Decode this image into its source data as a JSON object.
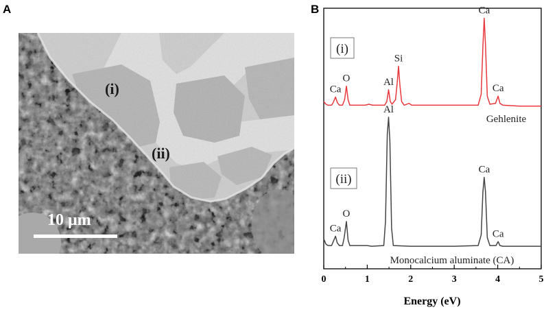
{
  "panels": {
    "a": {
      "letter": "A"
    },
    "b": {
      "letter": "B"
    }
  },
  "micrograph": {
    "region_i_label": "(i)",
    "region_ii_label": "(ii)",
    "scale_bar_label": "10 μm"
  },
  "chart_data": {
    "type": "line",
    "xlabel": "Energy (eV)",
    "ylabel": "",
    "xlim": [
      0,
      5
    ],
    "x_ticks": [
      "0",
      "1",
      "2",
      "3",
      "4",
      "5"
    ],
    "grid": false,
    "series": [
      {
        "name": "Gehlenite",
        "tag": "(i)",
        "color": "#e8383d",
        "points": [
          [
            0.0,
            0.06
          ],
          [
            0.05,
            0.03
          ],
          [
            0.1,
            0.02
          ],
          [
            0.18,
            0.02
          ],
          [
            0.22,
            0.05
          ],
          [
            0.27,
            0.11
          ],
          [
            0.31,
            0.05
          ],
          [
            0.36,
            0.02
          ],
          [
            0.43,
            0.02
          ],
          [
            0.48,
            0.08
          ],
          [
            0.52,
            0.23
          ],
          [
            0.56,
            0.08
          ],
          [
            0.6,
            0.02
          ],
          [
            0.95,
            0.02
          ],
          [
            1.04,
            0.03
          ],
          [
            1.12,
            0.02
          ],
          [
            1.4,
            0.02
          ],
          [
            1.45,
            0.06
          ],
          [
            1.49,
            0.19
          ],
          [
            1.53,
            0.06
          ],
          [
            1.57,
            0.03
          ],
          [
            1.65,
            0.08
          ],
          [
            1.69,
            0.27
          ],
          [
            1.72,
            0.45
          ],
          [
            1.75,
            0.25
          ],
          [
            1.79,
            0.06
          ],
          [
            1.85,
            0.02
          ],
          [
            1.96,
            0.04
          ],
          [
            2.02,
            0.02
          ],
          [
            3.55,
            0.02
          ],
          [
            3.62,
            0.14
          ],
          [
            3.66,
            0.67
          ],
          [
            3.69,
            0.98
          ],
          [
            3.72,
            0.68
          ],
          [
            3.76,
            0.12
          ],
          [
            3.82,
            0.03
          ],
          [
            3.95,
            0.04
          ],
          [
            4.01,
            0.12
          ],
          [
            4.05,
            0.04
          ],
          [
            4.12,
            0.02
          ],
          [
            4.5,
            0.01
          ],
          [
            5.0,
            0.01
          ]
        ],
        "peak_labels": [
          {
            "text": "Ca",
            "x": 0.27,
            "y": 0.11
          },
          {
            "text": "O",
            "x": 0.52,
            "y": 0.23
          },
          {
            "text": "Al",
            "x": 1.49,
            "y": 0.19
          },
          {
            "text": "Si",
            "x": 1.72,
            "y": 0.45
          },
          {
            "text": "Ca",
            "x": 3.69,
            "y": 0.98
          },
          {
            "text": "Ca",
            "x": 4.01,
            "y": 0.12
          }
        ]
      },
      {
        "name": "Monocalcium aluminate (CA)",
        "tag": "(ii)",
        "color": "#444444",
        "points": [
          [
            0.0,
            0.07
          ],
          [
            0.05,
            0.03
          ],
          [
            0.1,
            0.02
          ],
          [
            0.18,
            0.02
          ],
          [
            0.22,
            0.05
          ],
          [
            0.27,
            0.09
          ],
          [
            0.31,
            0.04
          ],
          [
            0.36,
            0.02
          ],
          [
            0.43,
            0.02
          ],
          [
            0.47,
            0.08
          ],
          [
            0.52,
            0.2
          ],
          [
            0.56,
            0.06
          ],
          [
            0.6,
            0.02
          ],
          [
            1.0,
            0.02
          ],
          [
            1.1,
            0.015
          ],
          [
            1.38,
            0.02
          ],
          [
            1.42,
            0.2
          ],
          [
            1.46,
            0.85
          ],
          [
            1.49,
            0.98
          ],
          [
            1.52,
            0.8
          ],
          [
            1.56,
            0.15
          ],
          [
            1.6,
            0.02
          ],
          [
            2.0,
            0.015
          ],
          [
            3.0,
            0.015
          ],
          [
            3.55,
            0.02
          ],
          [
            3.62,
            0.1
          ],
          [
            3.66,
            0.42
          ],
          [
            3.69,
            0.53
          ],
          [
            3.72,
            0.42
          ],
          [
            3.76,
            0.08
          ],
          [
            3.82,
            0.02
          ],
          [
            3.96,
            0.02
          ],
          [
            4.01,
            0.05
          ],
          [
            4.05,
            0.02
          ],
          [
            4.12,
            0.015
          ],
          [
            5.0,
            0.015
          ]
        ],
        "peak_labels": [
          {
            "text": "Ca",
            "x": 0.27,
            "y": 0.09
          },
          {
            "text": "O",
            "x": 0.52,
            "y": 0.2
          },
          {
            "text": "Al",
            "x": 1.49,
            "y": 0.98
          },
          {
            "text": "Ca",
            "x": 3.69,
            "y": 0.53
          },
          {
            "text": "Ca",
            "x": 4.01,
            "y": 0.05
          }
        ]
      }
    ]
  }
}
